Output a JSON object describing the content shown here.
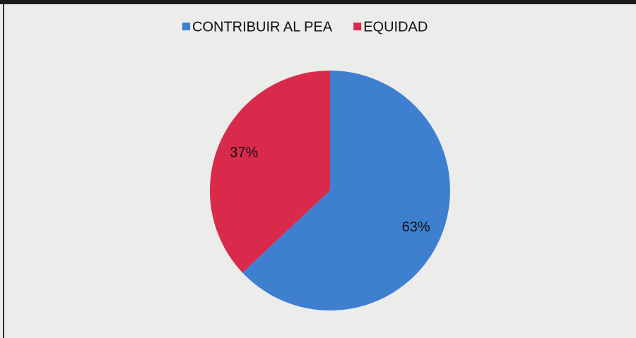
{
  "chart_data": {
    "type": "pie",
    "categories": [
      "CONTRIBUIR AL PEA",
      "EQUIDAD"
    ],
    "values": [
      63,
      37
    ],
    "value_labels": [
      "63%",
      "37%"
    ],
    "colors": [
      "#3f7fd0",
      "#d92a4c"
    ],
    "legend": "top"
  }
}
